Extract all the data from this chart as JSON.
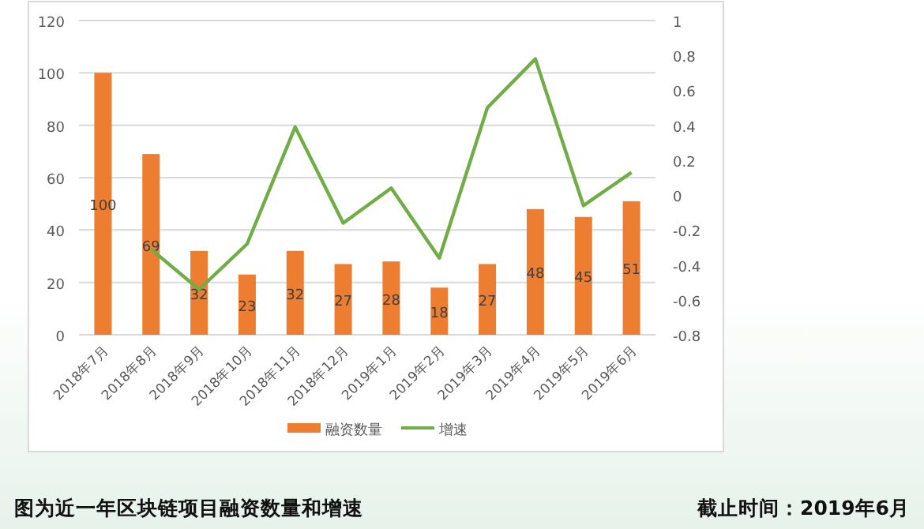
{
  "chart_data": {
    "type": "bar",
    "title": "图为近一年区块链项目融资数量和增速",
    "annotations": [
      "截止时间：2019年6月"
    ],
    "categories": [
      "2018年7月",
      "2018年8月",
      "2018年9月",
      "2018年10月",
      "2018年11月",
      "2018年12月",
      "2019年1月",
      "2019年2月",
      "2019年3月",
      "2019年4月",
      "2019年5月",
      "2019年6月"
    ],
    "series": [
      {
        "name": "融资数量",
        "color": "#ed7d31",
        "values": [
          100,
          69,
          32,
          23,
          32,
          27,
          28,
          18,
          27,
          48,
          45,
          51
        ],
        "value_labels": [
          "100",
          "69",
          "32",
          "23",
          "32",
          "27",
          "28",
          "18",
          "27",
          "48",
          "45",
          "51"
        ]
      },
      {
        "name": "增速",
        "type": "line",
        "axis": "y2",
        "color": "#70ad47",
        "values": [
          null,
          -0.31,
          -0.54,
          -0.28,
          0.39,
          -0.16,
          0.04,
          -0.36,
          0.5,
          0.78,
          -0.06,
          0.13
        ]
      }
    ],
    "ylim": [
      0,
      120
    ],
    "yticks": [
      0,
      20,
      40,
      60,
      80,
      100,
      120
    ],
    "y2lim": [
      -0.8,
      1
    ],
    "y2ticks": [
      -0.8,
      -0.6,
      -0.4,
      -0.2,
      0,
      0.2,
      0.4,
      0.6,
      0.8,
      1
    ],
    "grid": "y",
    "legend": "bottom"
  }
}
